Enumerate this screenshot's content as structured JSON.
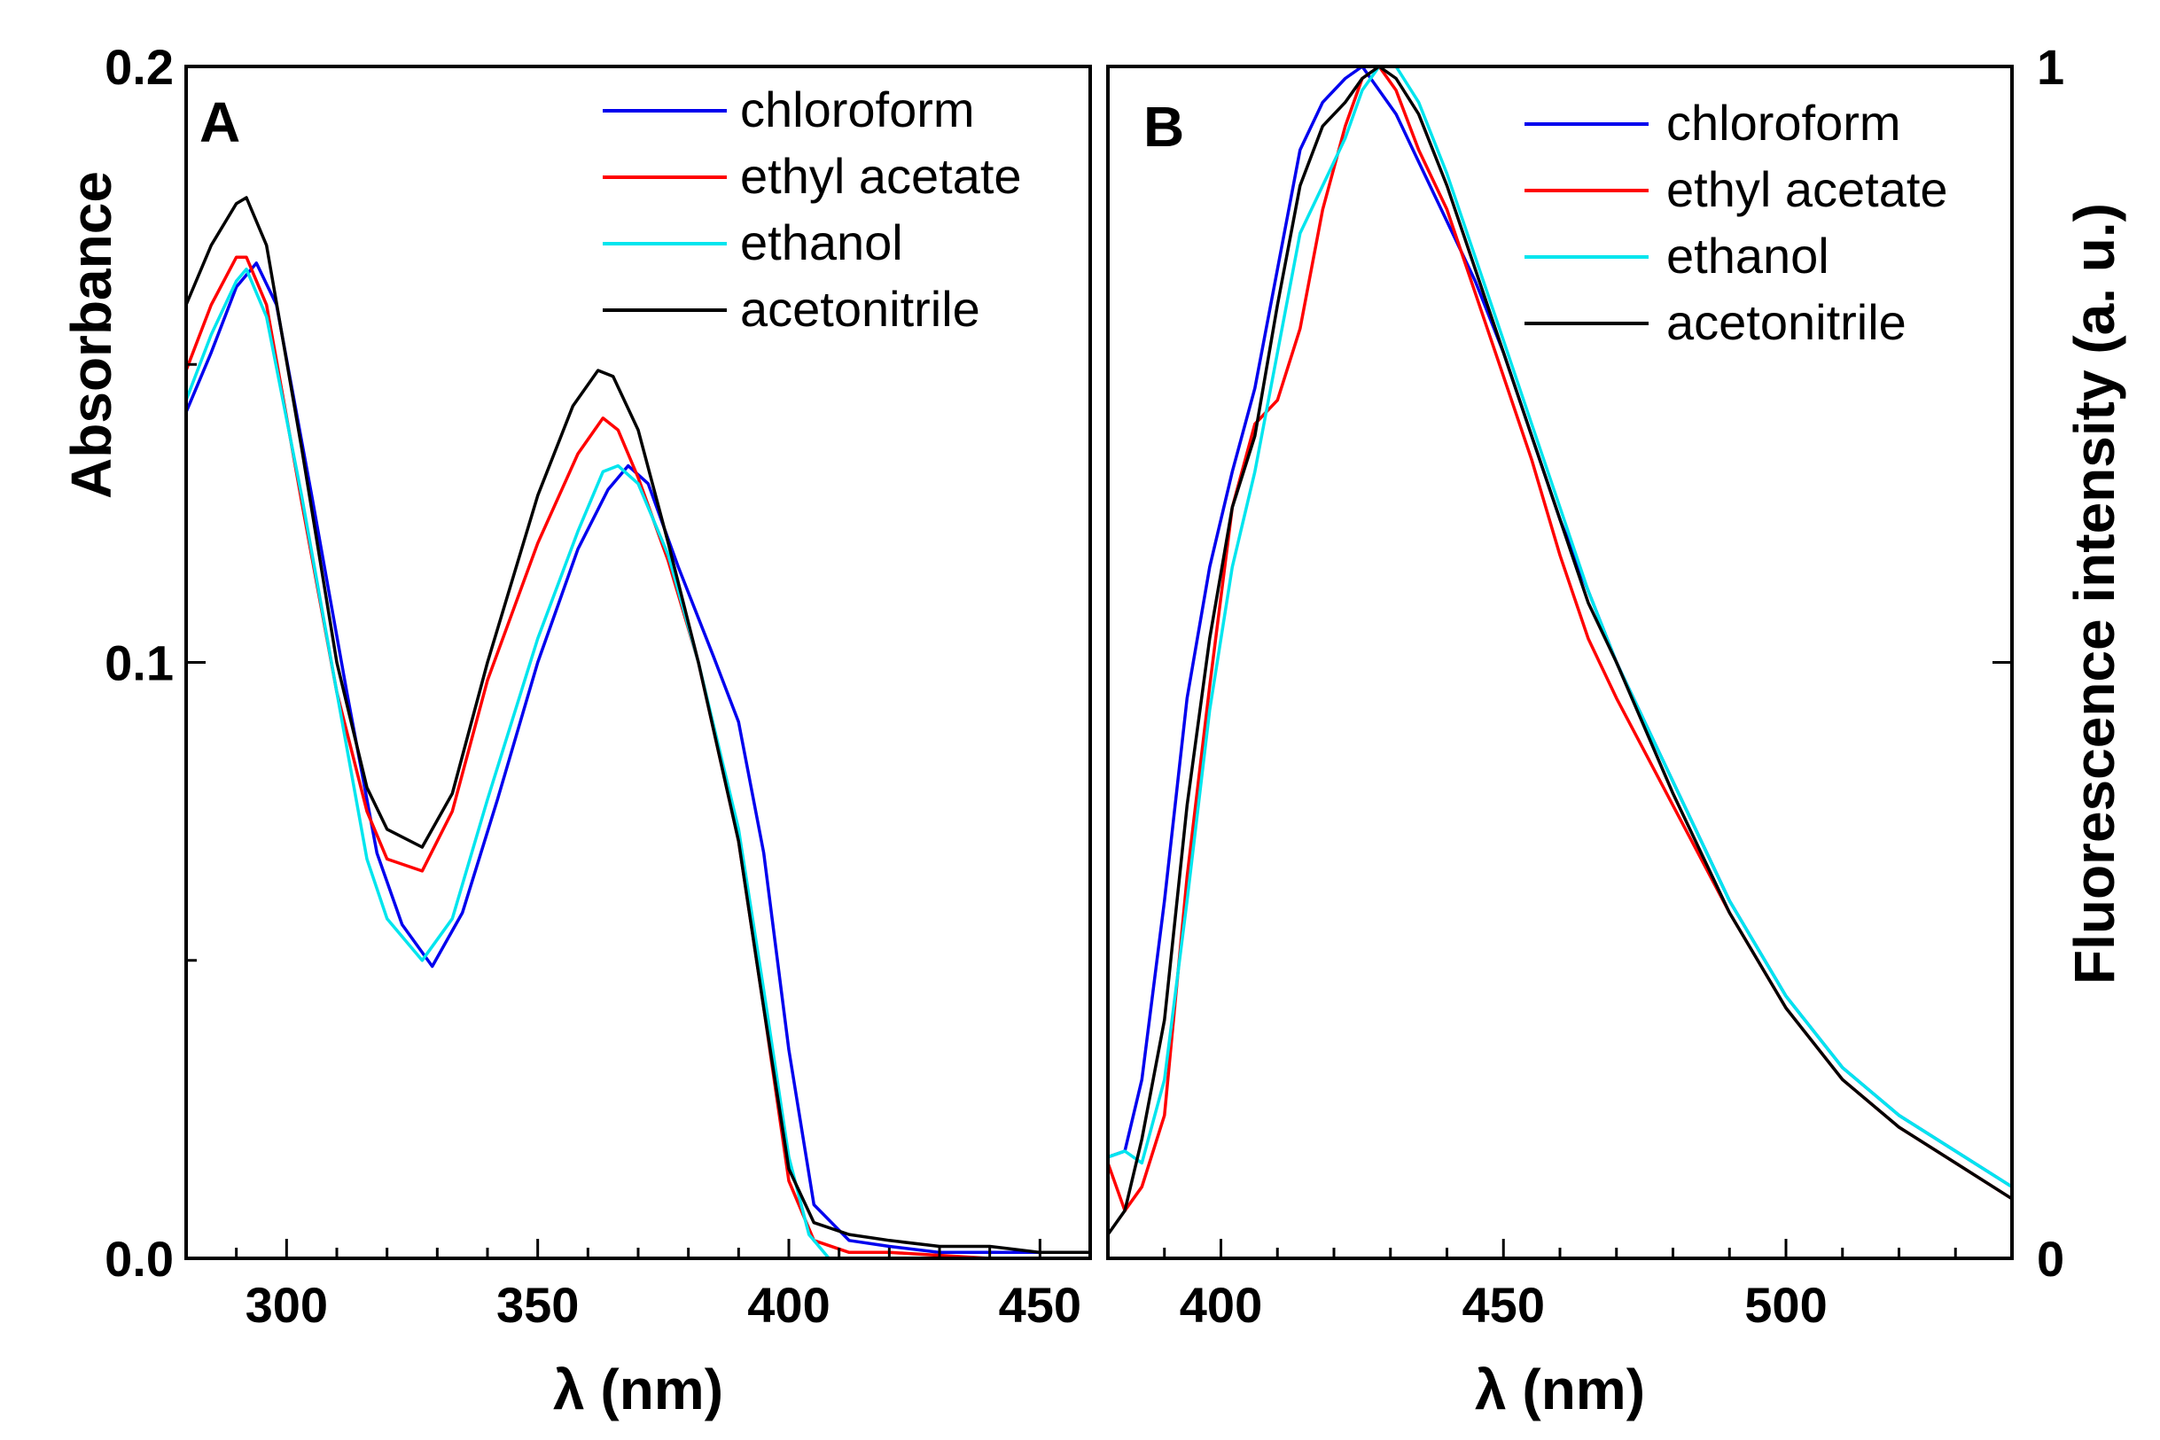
{
  "chart_data": [
    {
      "type": "line",
      "panel_label": "A",
      "xlabel": "λ (nm)",
      "ylabel": "Absorbance",
      "xlim": [
        280,
        460
      ],
      "ylim": [
        0,
        0.2
      ],
      "xticks": [
        300,
        350,
        400,
        450
      ],
      "xtick_labels": [
        "300",
        "350",
        "400",
        "450"
      ],
      "yticks": [
        0.0,
        0.1,
        0.2
      ],
      "ytick_labels": [
        "0.0",
        "0.1",
        "0.2"
      ],
      "legend_position": "top-right",
      "series": [
        {
          "name": "chloroform",
          "color": "#0000ee",
          "x": [
            280,
            285,
            290,
            294,
            298,
            305,
            312,
            318,
            323,
            329,
            335,
            342,
            350,
            358,
            364,
            368,
            372,
            378,
            385,
            390,
            395,
            400,
            405,
            412,
            420,
            430,
            440,
            450,
            460
          ],
          "y": [
            0.142,
            0.152,
            0.163,
            0.167,
            0.16,
            0.128,
            0.095,
            0.068,
            0.056,
            0.049,
            0.058,
            0.077,
            0.1,
            0.119,
            0.129,
            0.133,
            0.13,
            0.116,
            0.101,
            0.09,
            0.068,
            0.035,
            0.009,
            0.003,
            0.002,
            0.001,
            0.001,
            0.001,
            0.001
          ]
        },
        {
          "name": "ethyl acetate",
          "color": "#ff0000",
          "x": [
            280,
            285,
            290,
            292,
            296,
            303,
            310,
            316,
            320,
            327,
            333,
            340,
            350,
            358,
            363,
            366,
            370,
            376,
            382,
            390,
            395,
            400,
            405,
            412,
            420,
            440,
            460
          ],
          "y": [
            0.149,
            0.16,
            0.168,
            0.168,
            0.16,
            0.127,
            0.095,
            0.075,
            0.067,
            0.065,
            0.075,
            0.097,
            0.12,
            0.135,
            0.141,
            0.139,
            0.131,
            0.117,
            0.1,
            0.07,
            0.042,
            0.013,
            0.003,
            0.001,
            0.001,
            0.0,
            0.0
          ]
        },
        {
          "name": "ethanol",
          "color": "#00e5ee",
          "x": [
            280,
            285,
            290,
            292,
            296,
            303,
            310,
            316,
            320,
            327,
            333,
            340,
            350,
            358,
            363,
            366,
            370,
            376,
            382,
            390,
            395,
            400,
            404,
            408
          ],
          "y": [
            0.144,
            0.155,
            0.164,
            0.166,
            0.158,
            0.128,
            0.095,
            0.067,
            0.057,
            0.05,
            0.057,
            0.077,
            0.104,
            0.122,
            0.132,
            0.133,
            0.13,
            0.118,
            0.1,
            0.072,
            0.045,
            0.017,
            0.004,
            0.0
          ]
        },
        {
          "name": "acetonitrile",
          "color": "#000000",
          "x": [
            280,
            285,
            290,
            292,
            296,
            303,
            310,
            316,
            320,
            327,
            333,
            340,
            350,
            357,
            362,
            365,
            370,
            376,
            382,
            390,
            395,
            400,
            405,
            412,
            420,
            430,
            440,
            450,
            460
          ],
          "y": [
            0.16,
            0.17,
            0.177,
            0.178,
            0.17,
            0.136,
            0.1,
            0.079,
            0.072,
            0.069,
            0.078,
            0.1,
            0.128,
            0.143,
            0.149,
            0.148,
            0.139,
            0.12,
            0.1,
            0.07,
            0.042,
            0.015,
            0.006,
            0.004,
            0.003,
            0.002,
            0.002,
            0.001,
            0.001
          ]
        }
      ]
    },
    {
      "type": "line",
      "panel_label": "B",
      "xlabel": "λ (nm)",
      "ylabel": "Fluorescence intensity (a. u.)",
      "xlim": [
        380,
        540
      ],
      "ylim": [
        0,
        1
      ],
      "xticks": [
        400,
        450,
        500
      ],
      "xtick_labels": [
        "400",
        "450",
        "500"
      ],
      "yticks": [
        0,
        0.5,
        1
      ],
      "ytick_labels": [
        "0",
        "",
        "1"
      ],
      "legend_position": "top-right",
      "series": [
        {
          "name": "chloroform",
          "color": "#0000ee",
          "x": [
            380,
            383,
            386,
            390,
            394,
            398,
            402,
            406,
            410,
            414,
            418,
            422,
            425,
            428,
            431,
            435,
            440,
            445,
            450,
            455,
            460,
            465,
            470,
            480,
            490,
            500,
            510,
            520,
            530,
            540
          ],
          "y": [
            0.085,
            0.09,
            0.15,
            0.3,
            0.47,
            0.58,
            0.66,
            0.73,
            0.83,
            0.93,
            0.97,
            0.99,
            1.0,
            0.98,
            0.96,
            0.92,
            0.87,
            0.82,
            0.76,
            0.69,
            0.62,
            0.56,
            0.5,
            0.4,
            0.3,
            0.22,
            0.16,
            0.12,
            0.09,
            0.06
          ]
        },
        {
          "name": "ethyl acetate",
          "color": "#ff0000",
          "x": [
            380,
            383,
            386,
            390,
            394,
            398,
            402,
            406,
            410,
            414,
            418,
            422,
            425,
            428,
            431,
            435,
            440,
            445,
            450,
            455,
            460,
            465,
            470,
            480,
            490,
            500,
            510,
            520,
            530,
            540
          ],
          "y": [
            0.08,
            0.04,
            0.06,
            0.12,
            0.32,
            0.48,
            0.63,
            0.7,
            0.72,
            0.78,
            0.88,
            0.95,
            0.99,
            1.0,
            0.98,
            0.93,
            0.88,
            0.81,
            0.74,
            0.67,
            0.59,
            0.52,
            0.47,
            0.38,
            0.29,
            0.21,
            0.15,
            0.11,
            0.08,
            0.05
          ]
        },
        {
          "name": "ethanol",
          "color": "#00e5ee",
          "x": [
            380,
            383,
            386,
            390,
            394,
            398,
            402,
            406,
            410,
            414,
            418,
            422,
            425,
            428,
            431,
            435,
            440,
            445,
            450,
            455,
            460,
            465,
            470,
            480,
            490,
            500,
            510,
            520,
            530,
            540
          ],
          "y": [
            0.085,
            0.09,
            0.08,
            0.15,
            0.3,
            0.46,
            0.58,
            0.66,
            0.76,
            0.86,
            0.9,
            0.94,
            0.98,
            1.0,
            1.0,
            0.97,
            0.91,
            0.84,
            0.77,
            0.7,
            0.63,
            0.56,
            0.5,
            0.4,
            0.3,
            0.22,
            0.16,
            0.12,
            0.09,
            0.06
          ]
        },
        {
          "name": "acetonitrile",
          "color": "#000000",
          "x": [
            380,
            383,
            386,
            390,
            394,
            398,
            402,
            406,
            410,
            414,
            418,
            422,
            425,
            428,
            431,
            435,
            440,
            445,
            450,
            455,
            460,
            465,
            470,
            480,
            490,
            500,
            510,
            520,
            530,
            540
          ],
          "y": [
            0.02,
            0.04,
            0.1,
            0.2,
            0.38,
            0.52,
            0.63,
            0.69,
            0.8,
            0.9,
            0.95,
            0.97,
            0.99,
            1.0,
            0.99,
            0.96,
            0.9,
            0.83,
            0.76,
            0.69,
            0.62,
            0.55,
            0.5,
            0.39,
            0.29,
            0.21,
            0.15,
            0.11,
            0.08,
            0.05
          ]
        }
      ]
    }
  ]
}
